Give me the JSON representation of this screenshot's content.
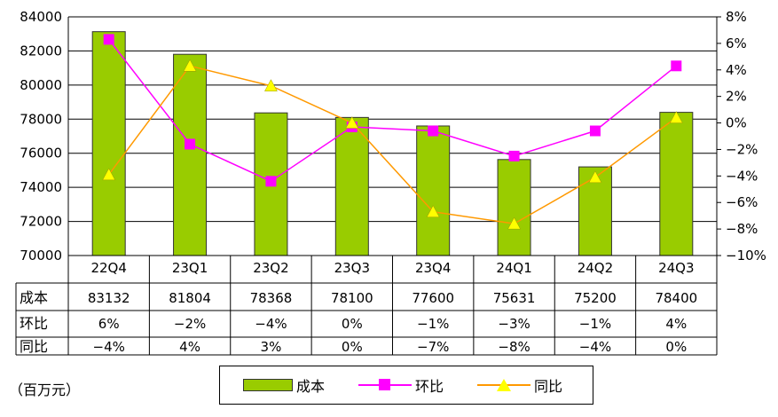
{
  "chart_data": {
    "type": "bar",
    "categories": [
      "22Q4",
      "23Q1",
      "23Q2",
      "23Q3",
      "23Q4",
      "24Q1",
      "24Q2",
      "24Q3"
    ],
    "series": [
      {
        "name": "成本",
        "type": "bar",
        "axis": "left",
        "color": "#99cc00",
        "values": [
          83132,
          81804,
          78368,
          78100,
          77600,
          75631,
          75200,
          78400
        ]
      },
      {
        "name": "环比",
        "type": "line",
        "axis": "right",
        "color": "#ff00ff",
        "marker": "square",
        "values": [
          6.3,
          -1.6,
          -4.4,
          -0.3,
          -0.6,
          -2.5,
          -0.6,
          4.3
        ]
      },
      {
        "name": "同比",
        "type": "line",
        "axis": "right",
        "color": "#ff9900",
        "marker": "triangle",
        "values": [
          -3.9,
          4.3,
          2.8,
          0.0,
          -6.7,
          -7.6,
          -4.1,
          0.4
        ]
      }
    ],
    "left_axis": {
      "min": 70000,
      "max": 84000,
      "step": 2000,
      "ticks": [
        "70000",
        "72000",
        "74000",
        "76000",
        "78000",
        "80000",
        "82000",
        "84000"
      ]
    },
    "right_axis": {
      "min": -10,
      "max": 8,
      "step": 2,
      "ticks": [
        "-10%",
        "-8%",
        "-6%",
        "-4%",
        "-2%",
        "0%",
        "2%",
        "4%",
        "6%",
        "8%"
      ]
    },
    "table": {
      "row_labels": [
        "成本",
        "环比",
        "同比"
      ],
      "rows": [
        [
          "83132",
          "81804",
          "78368",
          "78100",
          "77600",
          "75631",
          "75200",
          "78400"
        ],
        [
          "6%",
          "-2%",
          "-4%",
          "0%",
          "-1%",
          "-3%",
          "-1%",
          "4%"
        ],
        [
          "-4%",
          "4%",
          "3%",
          "0%",
          "-7%",
          "-8%",
          "-4%",
          "0%"
        ]
      ]
    },
    "unit": "（百万元）",
    "legend": [
      "成本",
      "环比",
      "同比"
    ],
    "grid": true
  }
}
